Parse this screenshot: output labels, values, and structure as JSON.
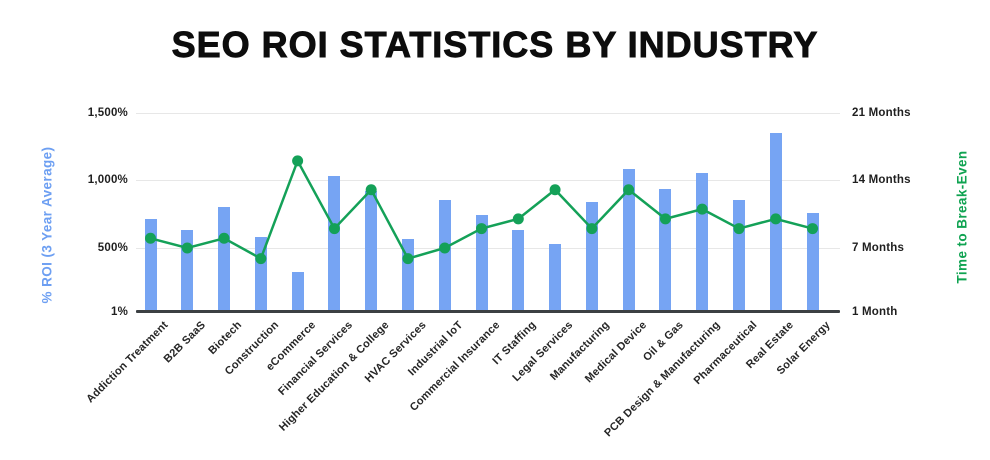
{
  "title": "SEO ROI STATISTICS BY INDUSTRY",
  "chart_data": {
    "type": "combo (bar + line, dual axis)",
    "categories": [
      "Addiction Treatment",
      "B2B SaaS",
      "Biotech",
      "Construction",
      "eCommerce",
      "Financial Services",
      "Higher Education & College",
      "HVAC Services",
      "Industrial IoT",
      "Commercial Insurance",
      "IT Staffing",
      "Legal Services",
      "Manufacturing",
      "Medical Device",
      "Oil & Gas",
      "PCB Design & Manufacturing",
      "Pharmaceutical",
      "Real Estate",
      "Solar Energy"
    ],
    "series": [
      {
        "name": "% ROI (3 Year Average)",
        "type": "bar",
        "axis": "left",
        "color": "#76a4f3",
        "values": [
          710,
          630,
          805,
          580,
          310,
          1030,
          920,
          565,
          855,
          745,
          630,
          530,
          835,
          1085,
          935,
          1050,
          855,
          1350,
          760
        ]
      },
      {
        "name": "Time to Break-Even",
        "type": "line",
        "axis": "right",
        "color": "#14a158",
        "values": [
          8,
          7,
          8,
          6,
          16,
          9,
          13,
          6,
          7,
          9,
          10,
          13,
          9,
          13,
          10,
          11,
          9,
          10,
          9
        ]
      }
    ],
    "left_axis": {
      "title": "% ROI (3 Year Average)",
      "title_color": "#6d9ff2",
      "tick_labels": [
        "1%",
        "500%",
        "1,000%",
        "1,500%"
      ],
      "tick_values": [
        1,
        500,
        1000,
        1500
      ],
      "range": [
        1,
        1500
      ]
    },
    "right_axis": {
      "title": "Time to Break-Even",
      "title_color": "#0fa351",
      "tick_labels": [
        "1 Month",
        "7 Months",
        "14 Months",
        "21 Months"
      ],
      "tick_values": [
        1,
        7,
        14,
        21
      ],
      "range": [
        1,
        21
      ]
    },
    "grid": "horizontal gridlines shared by both axes",
    "legend_position": "none",
    "category_label_rotation_deg": 45
  },
  "colors": {
    "bar_blue": "#76a4f3",
    "line_green": "#14a158",
    "gridline": "#e7e7e7",
    "axis_line": "#3c4043",
    "tick_text": "#1f1f1f",
    "title_text": "#0d0d0d",
    "background": "#ffffff"
  }
}
